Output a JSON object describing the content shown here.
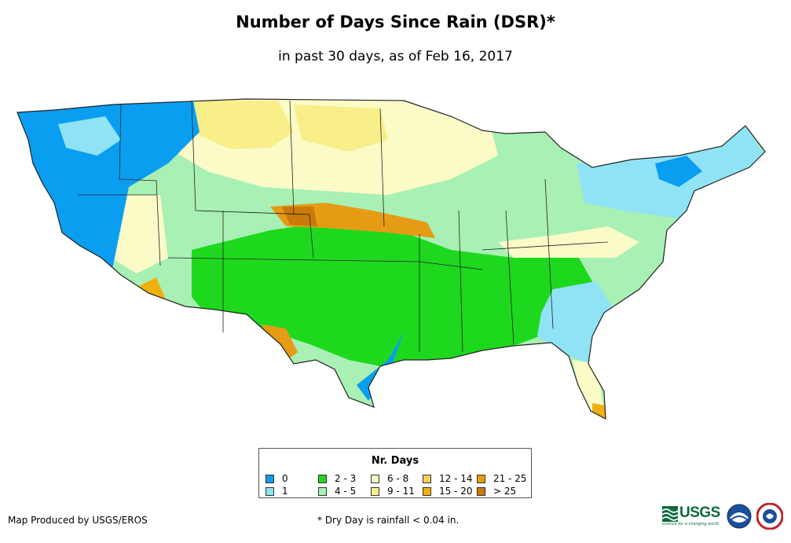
{
  "header": {
    "title": "Number of Days Since Rain (DSR)*",
    "subtitle": "in past 30 days, as of Feb 16, 2017"
  },
  "legend": {
    "title": "Nr. Days",
    "items": [
      {
        "label": "0",
        "color": "#0a9ef0"
      },
      {
        "label": "1",
        "color": "#8fe3f5"
      },
      {
        "label": "2 - 3",
        "color": "#1ed81e"
      },
      {
        "label": "4 - 5",
        "color": "#a8f0b4"
      },
      {
        "label": "6 - 8",
        "color": "#fbfbc8"
      },
      {
        "label": "9 - 11",
        "color": "#f8ef8a"
      },
      {
        "label": "12 - 14",
        "color": "#f6cf5a"
      },
      {
        "label": "15 - 20",
        "color": "#f2b00f"
      },
      {
        "label": "21 - 25",
        "color": "#e69b14"
      },
      {
        "label": "> 25",
        "color": "#c97a08"
      }
    ]
  },
  "footer": {
    "credit": "Map Produced by USGS/EROS",
    "note": "* Dry Day is rainfall < 0.04 in."
  },
  "logos": {
    "usgs_text": "USGS",
    "usgs_tagline": "science for a changing world",
    "noaa_icon": "noaa-logo",
    "nws_icon": "nws-logo"
  }
}
